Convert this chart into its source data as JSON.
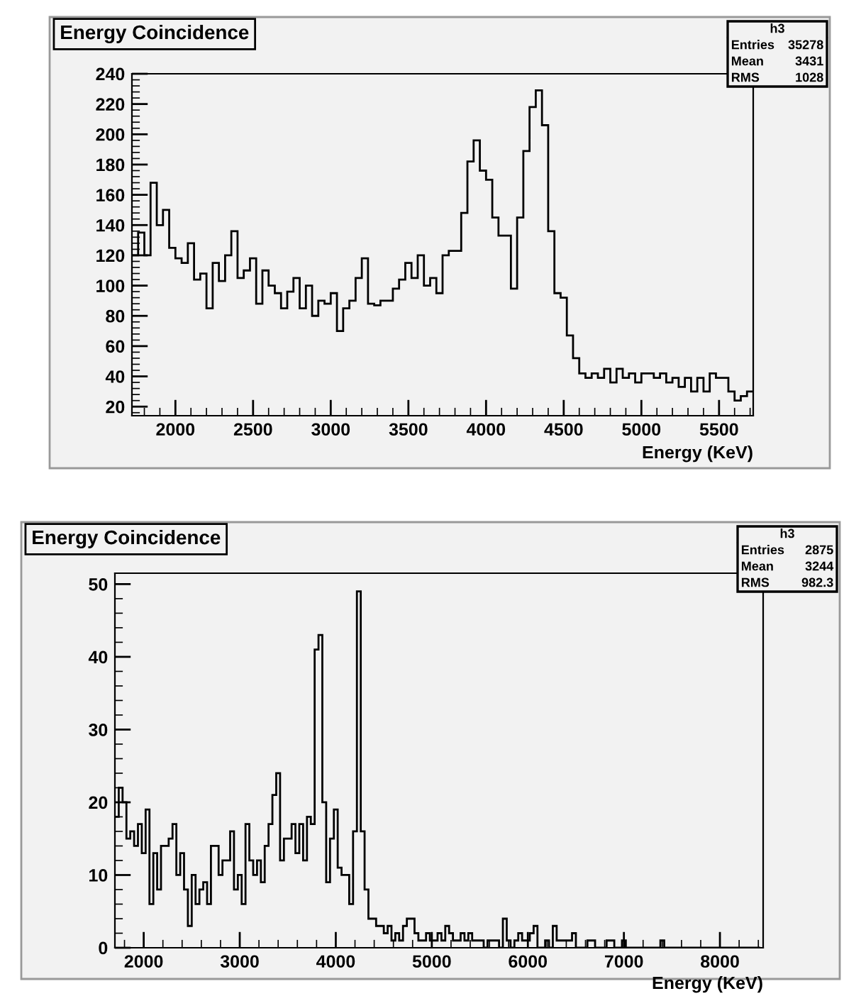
{
  "chart_data": [
    {
      "type": "histogram",
      "title": "Energy Coincidence",
      "xlabel": "Energy (KeV)",
      "color": "#000000",
      "annotations": [
        "h3",
        "Entries",
        "35278",
        "Mean",
        "3431",
        "RMS",
        "1028"
      ],
      "bins": [
        1720,
        1760,
        1800,
        1840,
        1880,
        1920,
        1960,
        2000,
        2040,
        2080,
        2120,
        2160,
        2200,
        2240,
        2280,
        2320,
        2360,
        2400,
        2440,
        2480,
        2520,
        2560,
        2600,
        2640,
        2680,
        2720,
        2760,
        2800,
        2840,
        2880,
        2920,
        2960,
        3000,
        3040,
        3080,
        3120,
        3160,
        3200,
        3240,
        3280,
        3320,
        3360,
        3400,
        3440,
        3480,
        3520,
        3560,
        3600,
        3640,
        3680,
        3720,
        3760,
        3800,
        3840,
        3880,
        3920,
        3960,
        4000,
        4040,
        4080,
        4120,
        4160,
        4200,
        4240,
        4280,
        4320,
        4360,
        4400,
        4440,
        4480,
        4520,
        4560,
        4600,
        4640,
        4680,
        4720,
        4760,
        4800,
        4840,
        4880,
        4920,
        4960,
        5000,
        5040,
        5080,
        5120,
        5160,
        5200,
        5240,
        5280,
        5320,
        5360,
        5400,
        5440,
        5480,
        5520,
        5560,
        5600,
        5640,
        5680,
        5720
      ],
      "values": [
        120,
        135,
        120,
        168,
        140,
        150,
        125,
        118,
        115,
        128,
        104,
        108,
        85,
        115,
        103,
        120,
        136,
        105,
        110,
        118,
        88,
        110,
        100,
        95,
        85,
        96,
        105,
        85,
        100,
        80,
        90,
        88,
        95,
        70,
        85,
        90,
        105,
        118,
        88,
        87,
        90,
        90,
        98,
        104,
        115,
        105,
        120,
        100,
        105,
        95,
        120,
        123,
        123,
        148,
        182,
        196,
        176,
        170,
        145,
        133,
        133,
        98,
        145,
        189,
        218,
        229,
        206,
        136,
        95,
        92,
        67,
        52,
        42,
        39,
        42,
        39,
        45,
        36,
        45,
        39,
        42,
        36,
        42,
        42,
        39,
        42,
        36,
        39,
        33,
        39,
        30,
        39,
        30,
        42,
        39,
        39,
        30,
        24,
        27,
        30
      ],
      "xlim": [
        1720,
        5720
      ],
      "ylim": [
        14,
        240
      ],
      "xticks": [
        2000,
        2500,
        3000,
        3500,
        4000,
        4500,
        5000,
        5500
      ],
      "yticks": [
        20,
        40,
        60,
        80,
        100,
        120,
        140,
        160,
        180,
        200,
        220,
        240
      ],
      "grid": false,
      "legend": false
    },
    {
      "type": "histogram",
      "title": "Energy Coincidence",
      "xlabel": "Energy (KeV)",
      "color": "#000000",
      "annotations": [
        "h3",
        "Entries",
        "2875",
        "Mean",
        "3244",
        "RMS",
        "982.3"
      ],
      "bins": [
        1700,
        1740,
        1780,
        1820,
        1860,
        1900,
        1940,
        1980,
        2020,
        2060,
        2100,
        2140,
        2180,
        2220,
        2260,
        2300,
        2340,
        2380,
        2420,
        2460,
        2500,
        2540,
        2580,
        2620,
        2660,
        2700,
        2740,
        2780,
        2820,
        2860,
        2900,
        2940,
        2980,
        3020,
        3060,
        3100,
        3140,
        3180,
        3220,
        3260,
        3300,
        3340,
        3380,
        3420,
        3460,
        3500,
        3540,
        3580,
        3620,
        3660,
        3700,
        3740,
        3780,
        3820,
        3860,
        3900,
        3940,
        3980,
        4020,
        4060,
        4100,
        4140,
        4180,
        4220,
        4260,
        4300,
        4340,
        4380,
        4420,
        4460,
        4500,
        4540,
        4580,
        4620,
        4660,
        4700,
        4740,
        4780,
        4820,
        4860,
        4900,
        4940,
        4980,
        5020,
        5060,
        5100,
        5140,
        5180,
        5220,
        5260,
        5300,
        5340,
        5380,
        5420,
        5460,
        5500,
        5540,
        5580,
        5620,
        5660,
        5700,
        5740,
        5780,
        5820,
        5860,
        5900,
        5940,
        5980,
        6020,
        6060,
        6100,
        6140,
        6180,
        6220,
        6260,
        6300,
        6340,
        6380,
        6420,
        6460,
        6500,
        6540,
        6580,
        6620,
        6660,
        6700,
        6740,
        6780,
        6820,
        6860,
        6900,
        6940,
        6980,
        7020,
        7060,
        7100,
        7140,
        7180,
        7220,
        7260,
        7300,
        7340,
        7380,
        7420,
        7460,
        7500,
        7540,
        7580,
        7620,
        7660,
        7700,
        7740,
        7780,
        7820,
        7860,
        7900,
        7940,
        7980,
        8020,
        8060,
        8100,
        8140,
        8180,
        8220,
        8260,
        8300,
        8340,
        8380,
        8420
      ],
      "values": [
        18,
        22,
        20,
        15,
        16,
        14,
        17,
        13,
        19,
        6,
        13,
        8,
        14,
        14,
        15,
        17,
        10,
        13,
        8,
        3,
        10,
        6,
        8,
        9,
        6,
        14,
        14,
        10,
        12,
        12,
        16,
        8,
        10,
        6,
        17,
        12,
        10,
        12,
        9,
        14,
        17,
        21,
        24,
        12,
        15,
        15,
        17,
        13,
        17,
        12,
        18,
        17,
        41,
        43,
        20,
        9,
        15,
        19,
        11,
        10,
        10,
        6,
        16,
        49,
        16,
        8,
        4,
        4,
        3,
        3,
        2,
        3,
        1,
        2,
        1,
        3,
        4,
        4,
        2,
        1,
        1,
        2,
        1,
        1,
        2,
        1,
        3,
        2,
        1,
        1,
        2,
        1,
        2,
        1,
        1,
        1,
        0,
        1,
        1,
        1,
        0,
        4,
        1,
        0,
        1,
        2,
        1,
        1,
        2,
        3,
        0,
        0,
        1,
        0,
        3,
        1,
        1,
        1,
        1,
        2,
        0,
        0,
        0,
        1,
        1,
        0,
        0,
        0,
        1,
        1,
        0,
        0,
        1,
        0,
        0,
        0,
        0,
        0,
        0,
        0,
        0,
        0,
        1,
        0,
        0,
        0,
        0,
        0,
        0,
        0,
        0,
        0,
        0,
        0,
        0,
        0,
        0,
        0,
        0,
        0,
        0,
        0,
        0,
        0,
        0,
        0,
        0,
        0
      ],
      "xlim": [
        1700,
        8450
      ],
      "ylim": [
        0,
        51.5
      ],
      "xticks": [
        2000,
        3000,
        4000,
        5000,
        6000,
        7000,
        8000
      ],
      "yticks": [
        0,
        10,
        20,
        30,
        40,
        50
      ],
      "grid": false,
      "legend": false
    }
  ]
}
